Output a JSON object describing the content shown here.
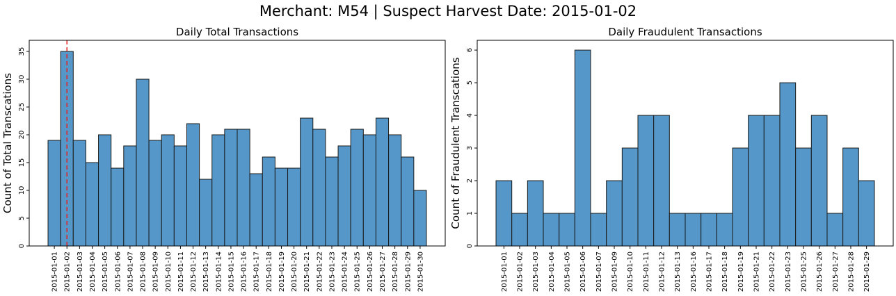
{
  "suptitle": "Merchant: M54  |  Suspect Harvest Date: 2015-01-02",
  "chart_data": [
    {
      "type": "bar",
      "title": "Daily Total Transactions",
      "ylabel": "Count of Total Transcations",
      "xlabel": "",
      "ylim": [
        0,
        37
      ],
      "yticks": [
        0,
        5,
        10,
        15,
        20,
        25,
        30,
        35
      ],
      "bar_color": "#5497c8",
      "categories": [
        "2015-01-01",
        "2015-01-02",
        "2015-01-03",
        "2015-01-04",
        "2015-01-05",
        "2015-01-06",
        "2015-01-07",
        "2015-01-08",
        "2015-01-09",
        "2015-01-10",
        "2015-01-11",
        "2015-01-12",
        "2015-01-13",
        "2015-01-14",
        "2015-01-15",
        "2015-01-16",
        "2015-01-17",
        "2015-01-18",
        "2015-01-19",
        "2015-01-20",
        "2015-01-21",
        "2015-01-22",
        "2015-01-23",
        "2015-01-24",
        "2015-01-25",
        "2015-01-26",
        "2015-01-27",
        "2015-01-28",
        "2015-01-29",
        "2015-01-30"
      ],
      "values": [
        19,
        35,
        19,
        15,
        20,
        14,
        18,
        30,
        19,
        20,
        18,
        22,
        12,
        20,
        21,
        21,
        13,
        16,
        14,
        14,
        23,
        21,
        16,
        18,
        21,
        20,
        23,
        20,
        16,
        10
      ],
      "reference_line": {
        "x": "2015-01-02",
        "color": "#e4241e",
        "style": "dashed"
      }
    },
    {
      "type": "bar",
      "title": "Daily Fraudulent Transactions",
      "ylabel": "Count of Fraudulent Transcations",
      "xlabel": "",
      "ylim": [
        0,
        6.3
      ],
      "yticks": [
        0,
        1,
        2,
        3,
        4,
        5,
        6
      ],
      "bar_color": "#5497c8",
      "categories": [
        "2015-01-01",
        "2015-01-02",
        "2015-01-03",
        "2015-01-04",
        "2015-01-05",
        "2015-01-06",
        "2015-01-07",
        "2015-01-09",
        "2015-01-10",
        "2015-01-11",
        "2015-01-12",
        "2015-01-13",
        "2015-01-16",
        "2015-01-17",
        "2015-01-18",
        "2015-01-19",
        "2015-01-21",
        "2015-01-22",
        "2015-01-23",
        "2015-01-25",
        "2015-01-26",
        "2015-01-27",
        "2015-01-28",
        "2015-01-29"
      ],
      "values": [
        2,
        1,
        2,
        1,
        1,
        6,
        1,
        2,
        3,
        4,
        4,
        1,
        1,
        1,
        1,
        3,
        4,
        4,
        5,
        3,
        4,
        1,
        3,
        2
      ]
    }
  ]
}
